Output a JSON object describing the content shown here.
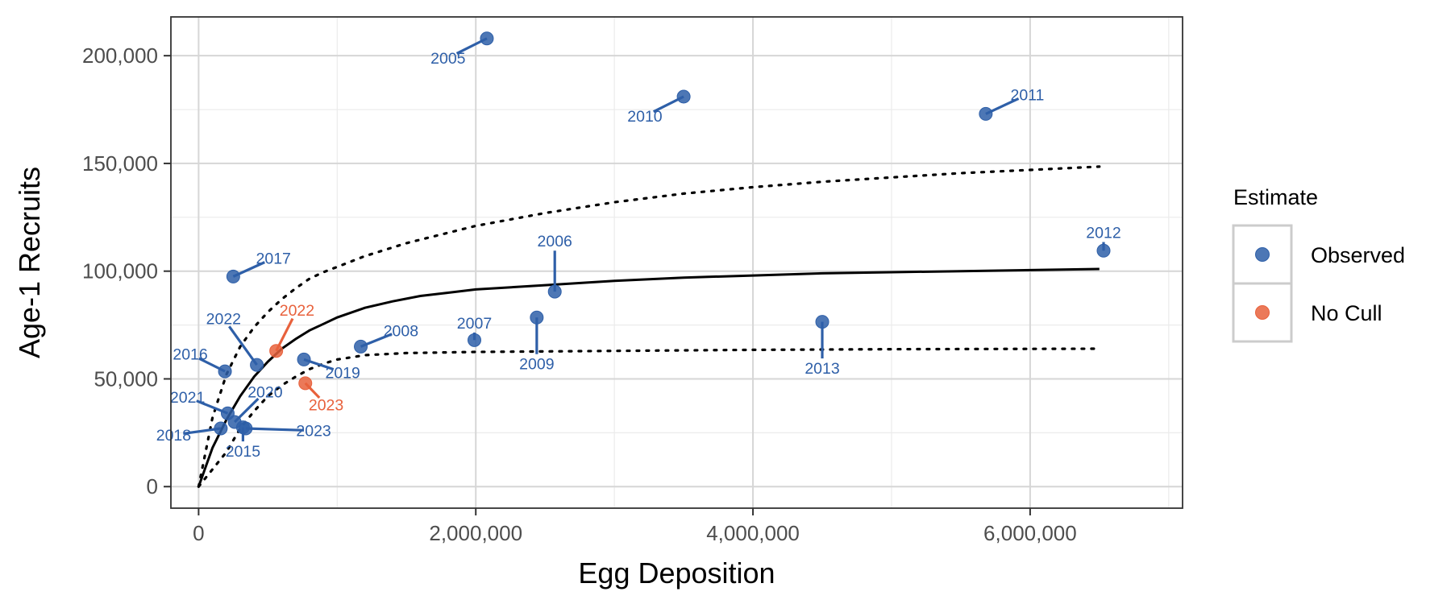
{
  "chart_data": {
    "type": "scatter",
    "title": "",
    "xlabel": "Egg Deposition",
    "ylabel": "Age-1 Recruits",
    "xlim": [
      -200000,
      7100000
    ],
    "ylim": [
      -10000,
      218000
    ],
    "x_ticks": [
      0,
      2000000,
      4000000,
      6000000
    ],
    "x_tick_labels": [
      "0",
      "2,000,000",
      "4,000,000",
      "6,000,000"
    ],
    "y_ticks": [
      0,
      50000,
      100000,
      150000,
      200000
    ],
    "y_tick_labels": [
      "0",
      "50,000",
      "100,000",
      "150,000",
      "200,000"
    ],
    "grid": true,
    "legend": {
      "title": "Estimate",
      "position": "right",
      "entries": [
        {
          "label": "Observed",
          "color": "#2E5FA8"
        },
        {
          "label": "No Cull",
          "color": "#E8613C"
        }
      ]
    },
    "colors": {
      "Observed": "#2E5FA8",
      "No Cull": "#E8613C"
    },
    "points": [
      {
        "label": "2005",
        "x": 2080000,
        "y": 208000,
        "group": "Observed",
        "lx": 1800000,
        "ly": 199000
      },
      {
        "label": "2010",
        "x": 3500000,
        "y": 181000,
        "group": "Observed",
        "lx": 3220000,
        "ly": 172000
      },
      {
        "label": "2011",
        "x": 5680000,
        "y": 173000,
        "group": "Observed",
        "lx": 5980000,
        "ly": 182000
      },
      {
        "label": "2012",
        "x": 6530000,
        "y": 109500,
        "group": "Observed",
        "lx": 6530000,
        "ly": 118000
      },
      {
        "label": "2017",
        "x": 250000,
        "y": 97500,
        "group": "Observed",
        "lx": 540000,
        "ly": 106000
      },
      {
        "label": "2006",
        "x": 2570000,
        "y": 90500,
        "group": "Observed",
        "lx": 2570000,
        "ly": 114000
      },
      {
        "label": "2009",
        "x": 2440000,
        "y": 78500,
        "group": "Observed",
        "lx": 2440000,
        "ly": 57000
      },
      {
        "label": "2013",
        "x": 4500000,
        "y": 76500,
        "group": "Observed",
        "lx": 4500000,
        "ly": 55000
      },
      {
        "label": "2007",
        "x": 1990000,
        "y": 68000,
        "group": "Observed",
        "lx": 1990000,
        "ly": 76000
      },
      {
        "label": "2008",
        "x": 1170000,
        "y": 65000,
        "group": "Observed",
        "lx": 1460000,
        "ly": 72500
      },
      {
        "label": "2019",
        "x": 760000,
        "y": 59000,
        "group": "Observed",
        "lx": 1040000,
        "ly": 53000
      },
      {
        "label": "2022",
        "x": 420000,
        "y": 56500,
        "group": "Observed",
        "lx": 180000,
        "ly": 78000
      },
      {
        "label": "2016",
        "x": 190000,
        "y": 53500,
        "group": "Observed",
        "lx": -60000,
        "ly": 61500
      },
      {
        "label": "2021",
        "x": 210000,
        "y": 34000,
        "group": "Observed",
        "lx": -80000,
        "ly": 41500
      },
      {
        "label": "2020",
        "x": 260000,
        "y": 30000,
        "group": "Observed",
        "lx": 480000,
        "ly": 44000
      },
      {
        "label": "2018",
        "x": 160000,
        "y": 27000,
        "group": "Observed",
        "lx": -180000,
        "ly": 24000
      },
      {
        "label": "2015",
        "x": 320000,
        "y": 27500,
        "group": "Observed",
        "lx": 320000,
        "ly": 16500
      },
      {
        "label": "2023",
        "x": 340000,
        "y": 27000,
        "group": "Observed",
        "lx": 830000,
        "ly": 26000
      },
      {
        "label": "2022",
        "x": 560000,
        "y": 63000,
        "group": "No Cull",
        "lx": 710000,
        "ly": 82000
      },
      {
        "label": "2023",
        "x": 770000,
        "y": 48000,
        "group": "No Cull",
        "lx": 920000,
        "ly": 38000
      }
    ],
    "fit_line": {
      "x": [
        0,
        100000,
        200000,
        300000,
        400000,
        500000,
        600000,
        700000,
        800000,
        900000,
        1000000,
        1200000,
        1400000,
        1600000,
        1800000,
        2000000,
        2500000,
        3000000,
        3500000,
        4000000,
        4500000,
        5000000,
        5500000,
        6000000,
        6500000
      ],
      "y": [
        0,
        18000,
        31000,
        42000,
        51000,
        58000,
        64000,
        68500,
        72500,
        75500,
        78500,
        83000,
        86000,
        88500,
        90000,
        91500,
        93500,
        95500,
        97000,
        98000,
        99000,
        99500,
        100000,
        100500,
        101000
      ]
    },
    "upper_bound": {
      "x": [
        0,
        100000,
        200000,
        300000,
        400000,
        500000,
        600000,
        700000,
        800000,
        900000,
        1000000,
        1200000,
        1500000,
        2000000,
        2500000,
        3000000,
        3500000,
        4000000,
        4500000,
        5000000,
        5500000,
        6000000,
        6500000
      ],
      "y": [
        0,
        32000,
        52000,
        65000,
        74000,
        81000,
        87000,
        92000,
        96500,
        99500,
        102000,
        107000,
        113000,
        121000,
        127000,
        132000,
        136000,
        139000,
        141500,
        143500,
        145500,
        147000,
        148500
      ]
    },
    "lower_bound": {
      "x": [
        0,
        100000,
        200000,
        300000,
        400000,
        500000,
        600000,
        700000,
        800000,
        900000,
        1000000,
        1200000,
        1500000,
        2000000,
        3000000,
        4000000,
        5000000,
        6500000
      ],
      "y": [
        0,
        8000,
        16000,
        27000,
        35000,
        42000,
        47000,
        51000,
        54500,
        57000,
        59000,
        61000,
        62000,
        62500,
        63000,
        63500,
        63800,
        64000
      ]
    }
  }
}
